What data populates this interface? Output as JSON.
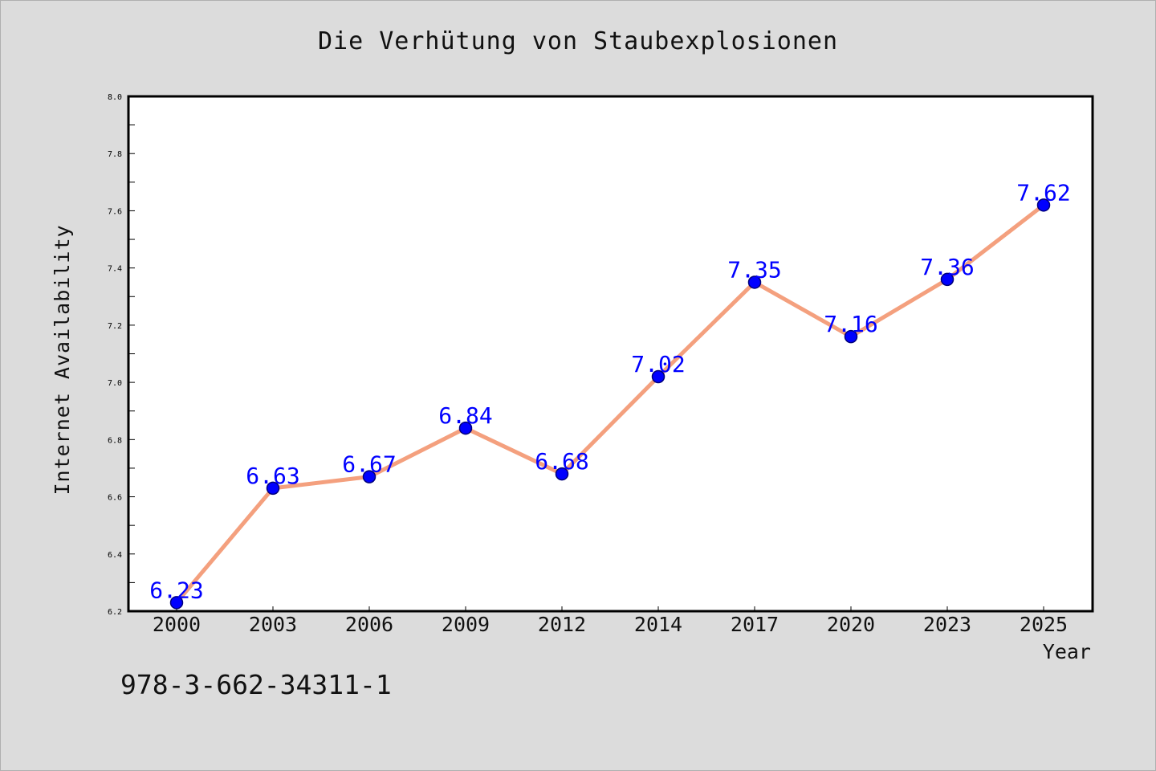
{
  "chart_data": {
    "type": "line",
    "title": "Die Verhütung von Staubexplosionen",
    "xlabel": "Year",
    "ylabel": "Internet Availability",
    "categories": [
      "2000",
      "2003",
      "2006",
      "2009",
      "2012",
      "2014",
      "2017",
      "2020",
      "2023",
      "2025"
    ],
    "values": [
      6.23,
      6.63,
      6.67,
      6.84,
      6.68,
      7.02,
      7.35,
      7.16,
      7.36,
      7.62
    ],
    "value_labels": [
      "6.23",
      "6.63",
      "6.67",
      "6.84",
      "6.68",
      "7.02",
      "7.35",
      "7.16",
      "7.36",
      "7.62"
    ],
    "ylim": [
      6.2,
      8.0
    ],
    "y_ticks": [
      "6.2",
      "6.4",
      "6.6",
      "6.8",
      "7.0",
      "7.2",
      "7.4",
      "7.6",
      "7.8",
      "8.0"
    ],
    "grid": false,
    "legend": "none",
    "colors": {
      "line": "#f4a07e",
      "marker": "#0000ff",
      "marker_edge": "#00007a",
      "value_label": "#0000ff",
      "plot_background": "#ffffff",
      "figure_background": "#dcdcdc"
    }
  },
  "footer": {
    "isbn": "978-3-662-34311-1"
  }
}
